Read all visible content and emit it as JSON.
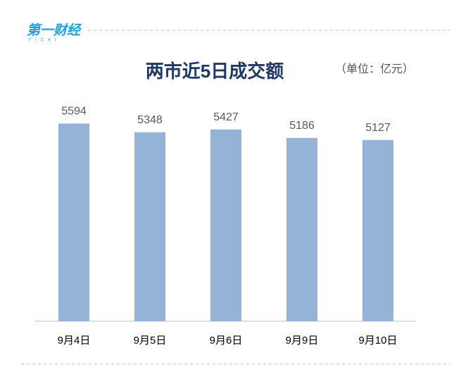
{
  "brand": {
    "name": "第一财经",
    "sub": "YICAI"
  },
  "chart_data": {
    "type": "bar",
    "title": "两市近5日成交额",
    "unit": "（单位：亿元）",
    "categories": [
      "9月4日",
      "9月5日",
      "9月6日",
      "9月9日",
      "9月10日"
    ],
    "values": [
      5594,
      5348,
      5427,
      5186,
      5127
    ],
    "color": "#95b3d7",
    "ylim": [
      0,
      6000
    ]
  }
}
